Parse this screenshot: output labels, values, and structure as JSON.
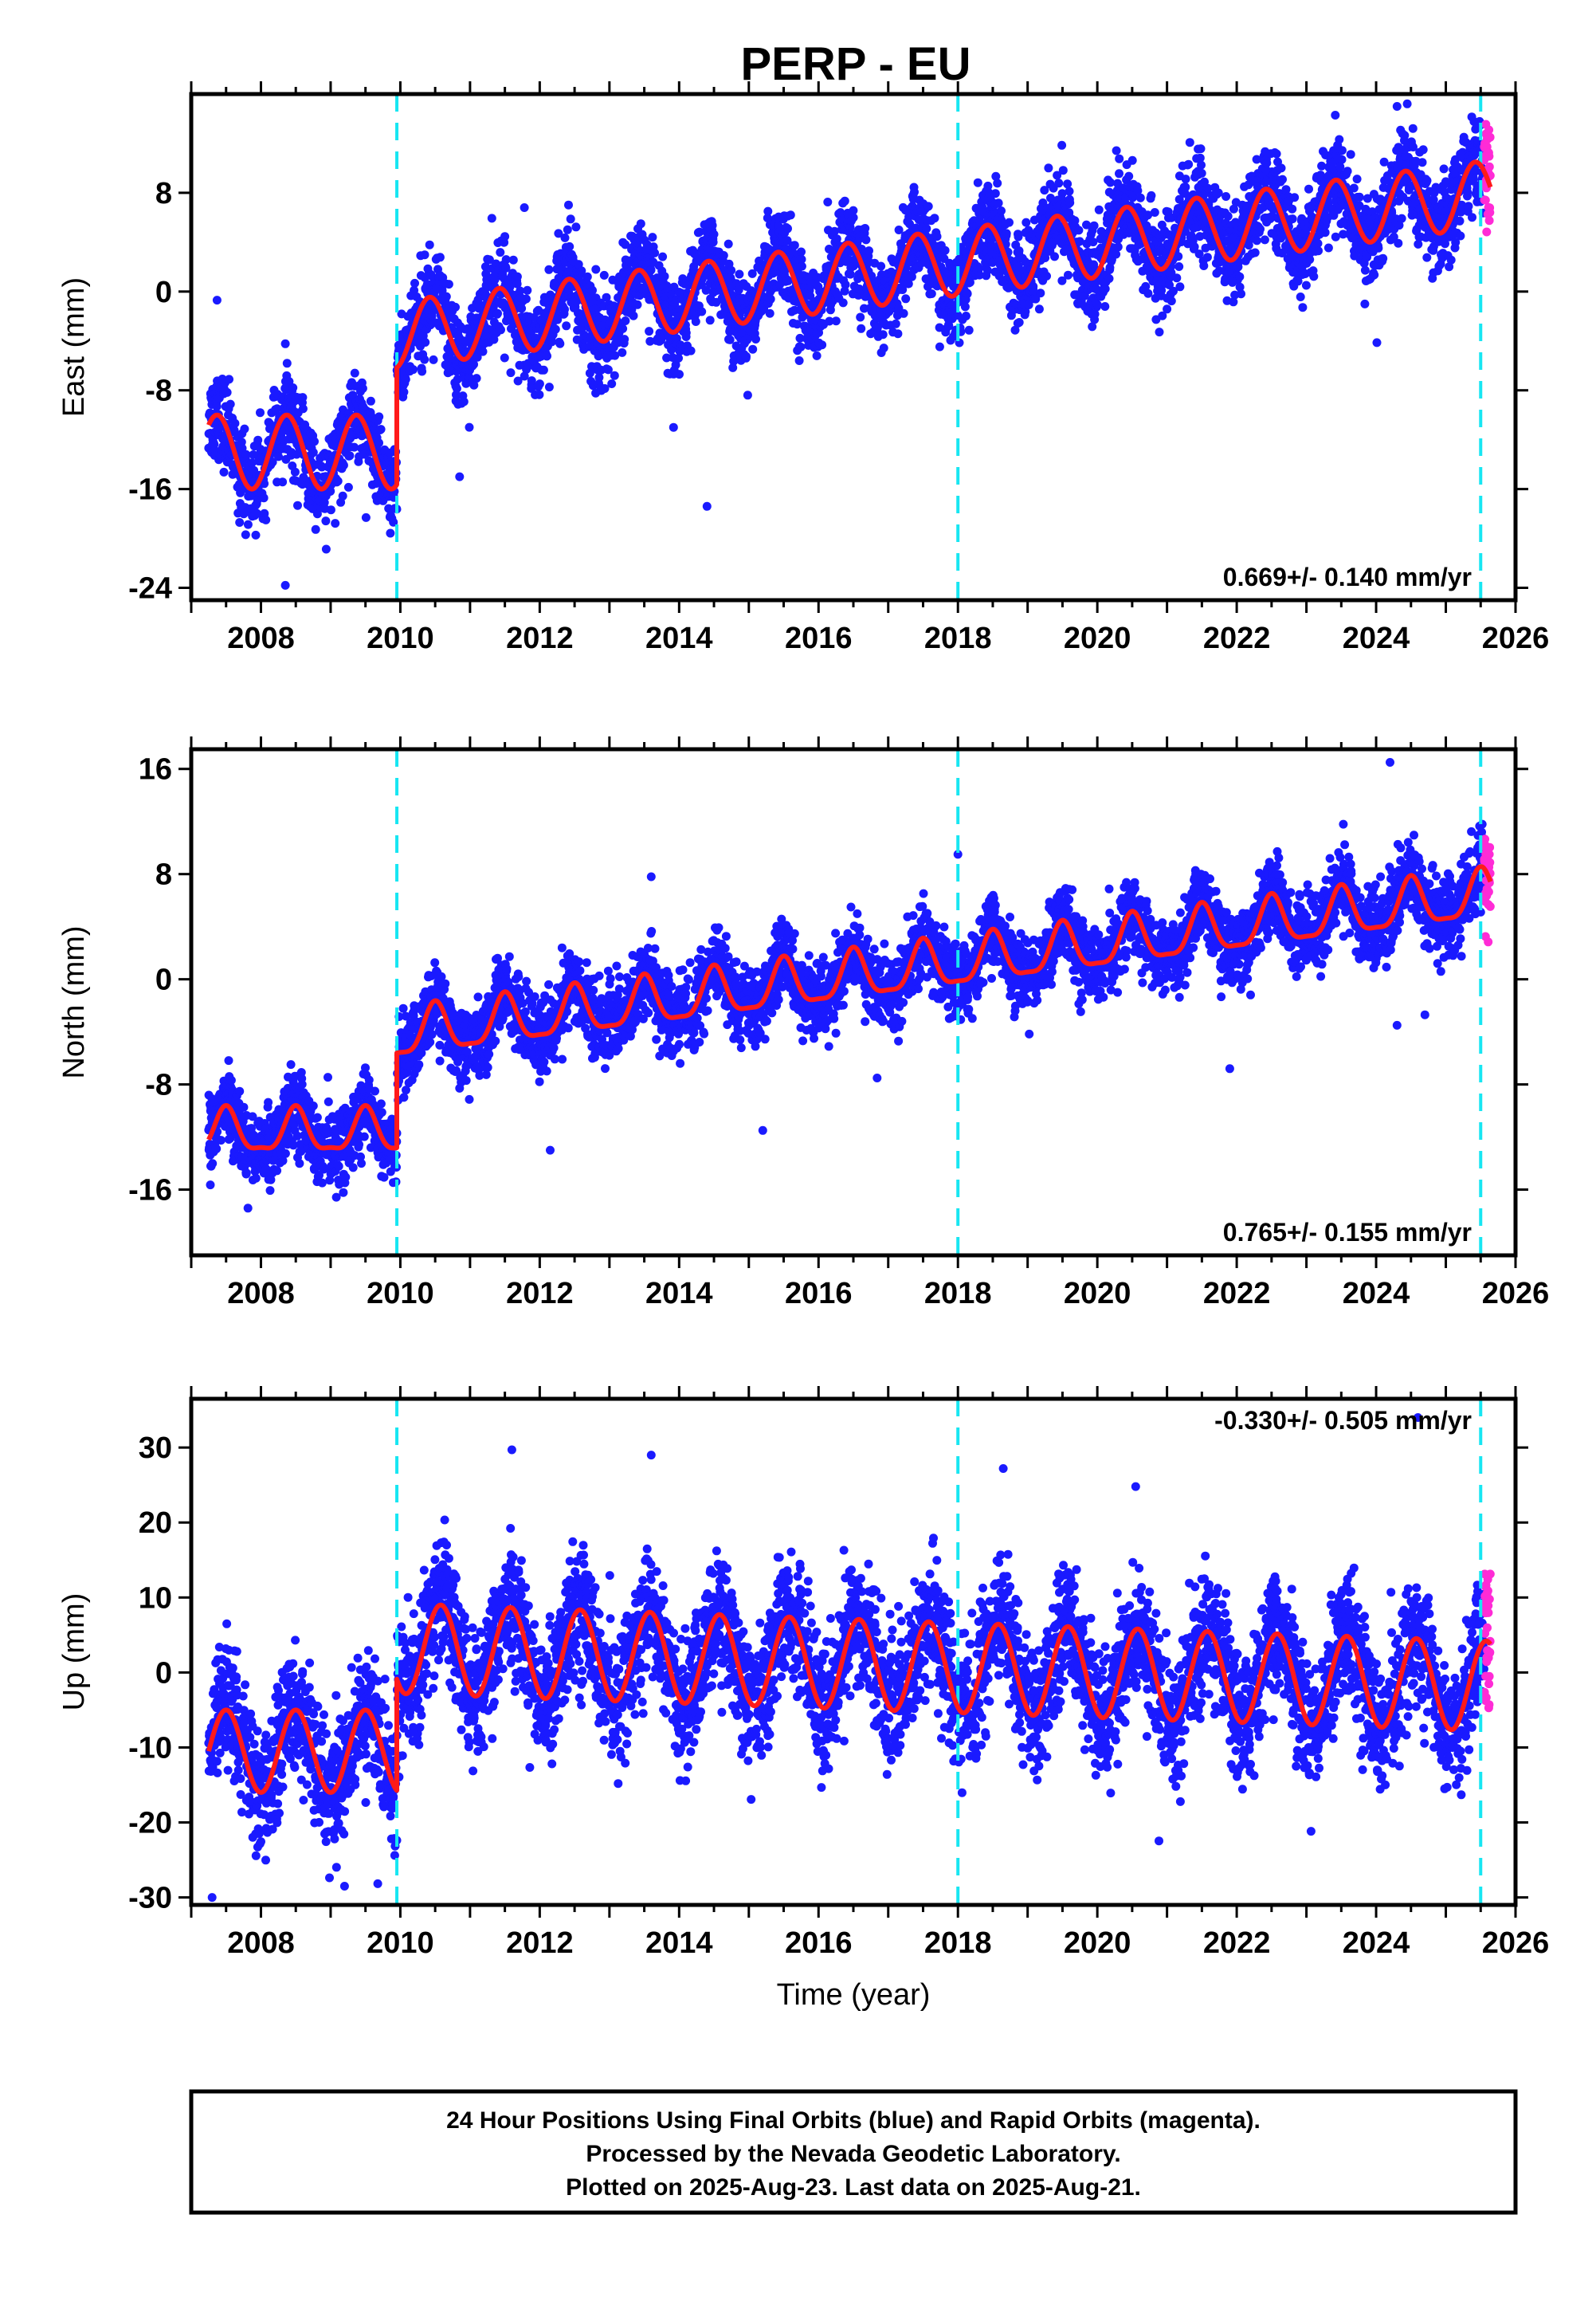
{
  "title": "PERP - EU",
  "footer": {
    "line1": "24 Hour Positions Using Final Orbits (blue) and Rapid Orbits (magenta).",
    "line2": "Processed by the Nevada Geodetic Laboratory.",
    "line3": "Plotted on 2025-Aug-23. Last data on 2025-Aug-21."
  },
  "colors": {
    "final_orbits": "#1a1aff",
    "rapid_orbits": "#ff2bd6",
    "model": "#ff1a1a",
    "breaks": "#17e6f2",
    "frame": "#000000"
  },
  "chart_data": [
    {
      "type": "scatter",
      "component": "East",
      "ylabel": "East (mm)",
      "xlabel": "",
      "xlim": [
        2007.0,
        2026.0
      ],
      "ylim": [
        -25.0,
        16.0
      ],
      "xticks": [
        2008,
        2010,
        2012,
        2014,
        2016,
        2018,
        2020,
        2022,
        2024,
        2026
      ],
      "yticks": [
        -24,
        -16,
        -8,
        0,
        8
      ],
      "rate_text": "0.669+/- 0.140 mm/yr",
      "breaks": [
        2009.95,
        2018.0,
        2025.5
      ],
      "data_start": 2007.25,
      "final_end": 2025.55,
      "rapid_end": 2025.64,
      "model_segments": [
        {
          "start": 2007.25,
          "end": 2009.95,
          "offset": -13.0,
          "slope": 0.0,
          "amplitude": 3.0,
          "semiannual": 0.0,
          "phase_year": 2007.37
        },
        {
          "start": 2009.95,
          "end": 2025.64,
          "offset": -3.5,
          "slope": 0.73,
          "amplitude": 2.7,
          "semiannual": 0.0,
          "phase_year": 2010.42
        }
      ],
      "scatter_sigma": 1.8,
      "outliers": [
        [
          2007.37,
          -0.7
        ],
        [
          2011.78,
          6.8
        ],
        [
          2013.92,
          -11.0
        ],
        [
          2014.4,
          -17.4
        ],
        [
          2024.3,
          15.0
        ],
        [
          2010.85,
          -15.0
        ],
        [
          2008.35,
          -23.8
        ]
      ]
    },
    {
      "type": "scatter",
      "component": "North",
      "ylabel": "North (mm)",
      "xlabel": "",
      "xlim": [
        2007.0,
        2026.0
      ],
      "ylim": [
        -21.0,
        17.5
      ],
      "xticks": [
        2008,
        2010,
        2012,
        2014,
        2016,
        2018,
        2020,
        2022,
        2024,
        2026
      ],
      "yticks": [
        -16,
        -8,
        0,
        8,
        16
      ],
      "rate_text": "0.765+/- 0.155 mm/yr",
      "breaks": [
        2009.95,
        2018.0,
        2025.5
      ],
      "data_start": 2007.25,
      "final_end": 2025.55,
      "rapid_end": 2025.64,
      "model_segments": [
        {
          "start": 2007.25,
          "end": 2009.95,
          "offset": -11.7,
          "slope": 0.0,
          "amplitude": 1.6,
          "semiannual": 0.5,
          "phase_year": 2007.5
        },
        {
          "start": 2009.95,
          "end": 2025.64,
          "offset": -4.3,
          "slope": 0.68,
          "amplitude": 1.8,
          "semiannual": 0.5,
          "phase_year": 2010.5
        }
      ],
      "scatter_sigma": 1.4,
      "outliers": [
        [
          2013.6,
          7.8
        ],
        [
          2012.15,
          -13.0
        ],
        [
          2015.2,
          -11.5
        ],
        [
          2024.2,
          16.5
        ],
        [
          2024.3,
          -3.5
        ],
        [
          2024.7,
          -2.7
        ],
        [
          2021.9,
          -6.8
        ],
        [
          2018.0,
          9.5
        ]
      ]
    },
    {
      "type": "scatter",
      "component": "Up",
      "ylabel": "Up (mm)",
      "xlabel": "Time (year)",
      "xlim": [
        2007.0,
        2026.0
      ],
      "ylim": [
        -31.0,
        36.5
      ],
      "xticks": [
        2008,
        2010,
        2012,
        2014,
        2016,
        2018,
        2020,
        2022,
        2024,
        2026
      ],
      "yticks": [
        -30,
        -20,
        -10,
        0,
        10,
        20,
        30
      ],
      "rate_text": "-0.330+/- 0.505 mm/yr",
      "breaks": [
        2009.95,
        2018.0,
        2025.5
      ],
      "data_start": 2007.25,
      "final_end": 2025.55,
      "rapid_end": 2025.64,
      "model_segments": [
        {
          "start": 2007.25,
          "end": 2009.95,
          "offset": -10.5,
          "slope": 0.0,
          "amplitude": 5.5,
          "semiannual": 0.0,
          "phase_year": 2007.5
        },
        {
          "start": 2009.95,
          "end": 2025.64,
          "offset": 3.2,
          "slope": -0.32,
          "amplitude": 6.0,
          "semiannual": 0.0,
          "phase_year": 2010.58
        }
      ],
      "scatter_sigma": 4.2,
      "outliers": [
        [
          2011.6,
          29.7
        ],
        [
          2013.6,
          29.0
        ],
        [
          2018.65,
          27.2
        ],
        [
          2020.55,
          24.8
        ],
        [
          2007.3,
          -30.0
        ],
        [
          2009.2,
          -28.5
        ],
        [
          2024.6,
          34.0
        ]
      ]
    }
  ]
}
